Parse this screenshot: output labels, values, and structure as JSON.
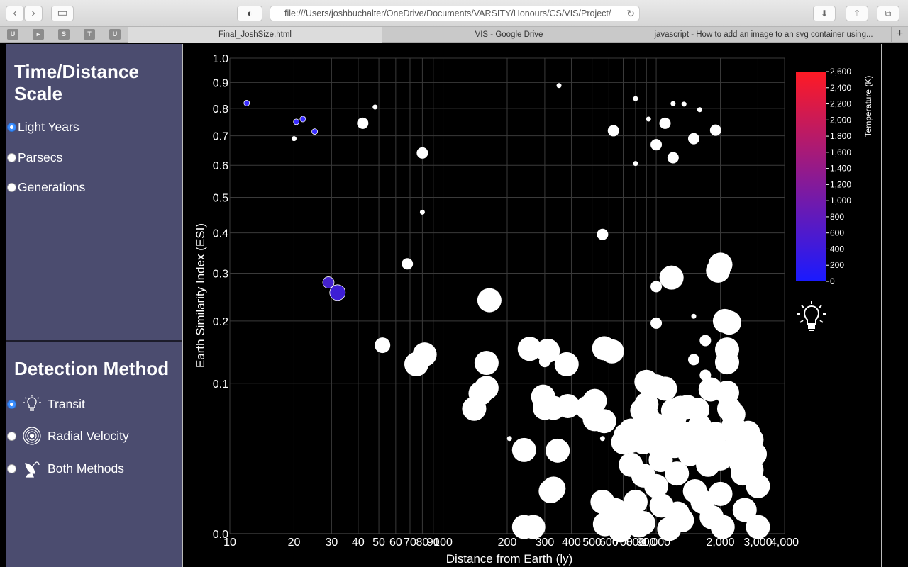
{
  "browser": {
    "url": "file:///Users/joshbuchalter/OneDrive/Documents/VARSITY/Honours/CS/VIS/Project/",
    "bookmarks": [
      "U",
      "",
      "S",
      "T",
      "U"
    ],
    "tabs": [
      {
        "label": "Final_JoshSize.html",
        "active": true
      },
      {
        "label": "VIS - Google Drive",
        "active": false
      },
      {
        "label": "javascript - How to add an image to an svg container using...",
        "active": false
      }
    ]
  },
  "sidebar": {
    "scale_title": "Time/Distance Scale",
    "scale_options": [
      {
        "label": "Light Years",
        "selected": true
      },
      {
        "label": "Parsecs",
        "selected": false
      },
      {
        "label": "Generations",
        "selected": false
      }
    ],
    "method_title": "Detection Method",
    "method_options": [
      {
        "label": "Transit",
        "icon": "lightbulb-icon",
        "selected": true
      },
      {
        "label": "Radial Velocity",
        "icon": "radial-waves-icon",
        "selected": false
      },
      {
        "label": "Both Methods",
        "icon": "satellite-dish-icon",
        "selected": false
      }
    ]
  },
  "chart_data": {
    "type": "scatter",
    "xlabel": "Distance from Earth (ly)",
    "ylabel": "Earth Similarity Index (ESI)",
    "x_scale": "log",
    "y_scale": "sqrt",
    "xlim": [
      10,
      4000
    ],
    "ylim": [
      0,
      1
    ],
    "x_ticks": [
      "10",
      "20",
      "30",
      "40",
      "50",
      "60",
      "70",
      "80",
      "90",
      "100",
      "200",
      "300",
      "400",
      "500",
      "600",
      "700",
      "800",
      "900",
      "1,000",
      "2,000",
      "3,000",
      "4,000"
    ],
    "x_tick_values": [
      10,
      20,
      30,
      40,
      50,
      60,
      70,
      80,
      90,
      100,
      200,
      300,
      400,
      500,
      600,
      700,
      800,
      900,
      1000,
      2000,
      3000,
      4000
    ],
    "y_ticks": [
      "0.0",
      "0.1",
      "0.2",
      "0.3",
      "0.4",
      "0.5",
      "0.6",
      "0.7",
      "0.8",
      "0.9",
      "1.0"
    ],
    "y_tick_values": [
      0,
      0.1,
      0.2,
      0.3,
      0.4,
      0.5,
      0.6,
      0.7,
      0.8,
      0.9,
      1.0
    ],
    "grid": true,
    "legend": {
      "title": "Temperature (K)",
      "placement": "right",
      "range": [
        0,
        2600
      ],
      "ticks": [
        "0",
        "200",
        "400",
        "600",
        "800",
        "1,000",
        "1,200",
        "1,400",
        "1,600",
        "1,800",
        "2,000",
        "2,200",
        "2,400",
        "2,600"
      ],
      "color_low": "#1a1aff",
      "color_high": "#ff1a24"
    },
    "legend_icon": "lightbulb-icon",
    "point_fill_default": "#ffffff",
    "points": [
      {
        "x": 12,
        "y": 0.82,
        "size": "small",
        "fill": "#3a2dff"
      },
      {
        "x": 20.5,
        "y": 0.75,
        "size": "small",
        "fill": "#3a2dff"
      },
      {
        "x": 22,
        "y": 0.76,
        "size": "small",
        "fill": "#3a2dff"
      },
      {
        "x": 25,
        "y": 0.715,
        "size": "small",
        "fill": "#3a2dff"
      },
      {
        "x": 20,
        "y": 0.69,
        "size": "tiny",
        "fill": "#ffffff"
      },
      {
        "x": 42,
        "y": 0.745,
        "size": "medium",
        "fill": "#ffffff"
      },
      {
        "x": 48,
        "y": 0.805,
        "size": "tiny",
        "fill": "#ffffff"
      },
      {
        "x": 80,
        "y": 0.641,
        "size": "medium",
        "fill": "#ffffff"
      },
      {
        "x": 80,
        "y": 0.457,
        "size": "tiny",
        "fill": "#ffffff"
      },
      {
        "x": 68,
        "y": 0.322,
        "size": "medium",
        "fill": "#ffffff"
      },
      {
        "x": 29,
        "y": 0.279,
        "size": "medium",
        "fill": "#4422cc"
      },
      {
        "x": 32,
        "y": 0.257,
        "size": "large",
        "fill": "#3d1ed4"
      },
      {
        "x": 52,
        "y": 0.157,
        "size": "large",
        "fill": "#ffffff"
      },
      {
        "x": 75,
        "y": 0.127,
        "size": "xlarge",
        "fill": "#ffffff"
      },
      {
        "x": 82,
        "y": 0.142,
        "size": "xlarge",
        "fill": "#ffffff"
      },
      {
        "x": 140,
        "y": 0.069,
        "size": "xlarge",
        "fill": "#ffffff"
      },
      {
        "x": 150,
        "y": 0.087,
        "size": "xlarge",
        "fill": "#ffffff"
      },
      {
        "x": 160,
        "y": 0.094,
        "size": "xlarge",
        "fill": "#ffffff"
      },
      {
        "x": 160,
        "y": 0.129,
        "size": "xlarge",
        "fill": "#ffffff"
      },
      {
        "x": 205,
        "y": 0.04,
        "size": "tiny",
        "fill": "#ffffff"
      },
      {
        "x": 165,
        "y": 0.241,
        "size": "xlarge",
        "fill": "#ffffff"
      },
      {
        "x": 255,
        "y": 0.151,
        "size": "xlarge",
        "fill": "#ffffff"
      },
      {
        "x": 240,
        "y": 0.031,
        "size": "xlarge",
        "fill": "#ffffff"
      },
      {
        "x": 240,
        "y": 0.0002,
        "size": "xlarge",
        "fill": "#ffffff"
      },
      {
        "x": 265,
        "y": 0.0002,
        "size": "xlarge",
        "fill": "#ffffff"
      },
      {
        "x": 295,
        "y": 0.083,
        "size": "xlarge",
        "fill": "#ffffff"
      },
      {
        "x": 300,
        "y": 0.07,
        "size": "xlarge",
        "fill": "#ffffff"
      },
      {
        "x": 300,
        "y": 0.131,
        "size": "medium",
        "fill": "#ffffff"
      },
      {
        "x": 310,
        "y": 0.148,
        "size": "xlarge",
        "fill": "#ffffff"
      },
      {
        "x": 320,
        "y": 0.008,
        "size": "xlarge",
        "fill": "#ffffff"
      },
      {
        "x": 330,
        "y": 0.009,
        "size": "xlarge",
        "fill": "#ffffff"
      },
      {
        "x": 330,
        "y": 0.07,
        "size": "xlarge",
        "fill": "#ffffff"
      },
      {
        "x": 345,
        "y": 0.0305,
        "size": "xlarge",
        "fill": "#ffffff"
      },
      {
        "x": 350,
        "y": 0.888,
        "size": "tiny",
        "fill": "#ffffff"
      },
      {
        "x": 380,
        "y": 0.127,
        "size": "xlarge",
        "fill": "#ffffff"
      },
      {
        "x": 385,
        "y": 0.072,
        "size": "xlarge",
        "fill": "#ffffff"
      },
      {
        "x": 388,
        "y": 0.082,
        "size": "tiny",
        "fill": "#ffffff"
      },
      {
        "x": 475,
        "y": 0.07,
        "size": "xlarge",
        "fill": "#ffffff"
      },
      {
        "x": 515,
        "y": 0.078,
        "size": "xlarge",
        "fill": "#ffffff"
      },
      {
        "x": 515,
        "y": 0.058,
        "size": "xlarge",
        "fill": "#ffffff"
      },
      {
        "x": 570,
        "y": 0.152,
        "size": "xlarge",
        "fill": "#ffffff"
      },
      {
        "x": 570,
        "y": 0.056,
        "size": "xlarge",
        "fill": "#ffffff"
      },
      {
        "x": 560,
        "y": 0.396,
        "size": "medium",
        "fill": "#ffffff"
      },
      {
        "x": 560,
        "y": 0.04,
        "size": "tiny",
        "fill": "#ffffff"
      },
      {
        "x": 620,
        "y": 0.147,
        "size": "xlarge",
        "fill": "#ffffff"
      },
      {
        "x": 630,
        "y": 0.718,
        "size": "medium",
        "fill": "#ffffff"
      },
      {
        "x": 560,
        "y": 0.0045,
        "size": "xlarge",
        "fill": "#ffffff"
      },
      {
        "x": 575,
        "y": 0.0004,
        "size": "xlarge",
        "fill": "#ffffff"
      },
      {
        "x": 640,
        "y": 0.0025,
        "size": "xlarge",
        "fill": "#ffffff"
      },
      {
        "x": 680,
        "y": 5e-05,
        "size": "xlarge",
        "fill": "#ffffff"
      },
      {
        "x": 700,
        "y": 0.037,
        "size": "xlarge",
        "fill": "#ffffff"
      },
      {
        "x": 720,
        "y": 0.043,
        "size": "xlarge",
        "fill": "#ffffff"
      },
      {
        "x": 740,
        "y": 0.0012,
        "size": "xlarge",
        "fill": "#ffffff"
      },
      {
        "x": 760,
        "y": 0.047,
        "size": "xlarge",
        "fill": "#ffffff"
      },
      {
        "x": 760,
        "y": 0.038,
        "size": "xlarge",
        "fill": "#ffffff"
      },
      {
        "x": 760,
        "y": 0.021,
        "size": "xlarge",
        "fill": "#ffffff"
      },
      {
        "x": 800,
        "y": 0.837,
        "size": "tiny",
        "fill": "#ffffff"
      },
      {
        "x": 800,
        "y": 0.606,
        "size": "tiny",
        "fill": "#ffffff"
      },
      {
        "x": 800,
        "y": 0.0045,
        "size": "xlarge",
        "fill": "#ffffff"
      },
      {
        "x": 830,
        "y": 0.0003,
        "size": "xlarge",
        "fill": "#ffffff"
      },
      {
        "x": 860,
        "y": 0.067,
        "size": "xlarge",
        "fill": "#ffffff"
      },
      {
        "x": 870,
        "y": 0.037,
        "size": "xlarge",
        "fill": "#ffffff"
      },
      {
        "x": 870,
        "y": 0.015,
        "size": "xlarge",
        "fill": "#ffffff"
      },
      {
        "x": 870,
        "y": 0.0005,
        "size": "xlarge",
        "fill": "#ffffff"
      },
      {
        "x": 900,
        "y": 0.102,
        "size": "xlarge",
        "fill": "#ffffff"
      },
      {
        "x": 900,
        "y": 0.074,
        "size": "xlarge",
        "fill": "#ffffff"
      },
      {
        "x": 905,
        "y": 0.053,
        "size": "xlarge",
        "fill": "#ffffff"
      },
      {
        "x": 910,
        "y": 0.06,
        "size": "xlarge",
        "fill": "#ffffff"
      },
      {
        "x": 920,
        "y": 0.76,
        "size": "tiny",
        "fill": "#ffffff"
      },
      {
        "x": 1000,
        "y": 0.096,
        "size": "xlarge",
        "fill": "#ffffff"
      },
      {
        "x": 1000,
        "y": 0.27,
        "size": "medium",
        "fill": "#ffffff"
      },
      {
        "x": 1000,
        "y": 0.196,
        "size": "medium",
        "fill": "#ffffff"
      },
      {
        "x": 1000,
        "y": 0.669,
        "size": "medium",
        "fill": "#ffffff"
      },
      {
        "x": 1000,
        "y": 0.052,
        "size": "xlarge",
        "fill": "#ffffff"
      },
      {
        "x": 1000,
        "y": 0.01,
        "size": "xlarge",
        "fill": "#ffffff"
      },
      {
        "x": 1040,
        "y": 0.044,
        "size": "xlarge",
        "fill": "#ffffff"
      },
      {
        "x": 1040,
        "y": 0.033,
        "size": "xlarge",
        "fill": "#ffffff"
      },
      {
        "x": 1050,
        "y": 0.024,
        "size": "xlarge",
        "fill": "#ffffff"
      },
      {
        "x": 1060,
        "y": 0.0035,
        "size": "xlarge",
        "fill": "#ffffff"
      },
      {
        "x": 1100,
        "y": 0.745,
        "size": "medium",
        "fill": "#ffffff"
      },
      {
        "x": 1100,
        "y": 0.093,
        "size": "xlarge",
        "fill": "#ffffff"
      },
      {
        "x": 1120,
        "y": 0.047,
        "size": "xlarge",
        "fill": "#ffffff"
      },
      {
        "x": 1150,
        "y": 0.0001,
        "size": "xlarge",
        "fill": "#ffffff"
      },
      {
        "x": 1180,
        "y": 0.29,
        "size": "xlarge",
        "fill": "#ffffff"
      },
      {
        "x": 1200,
        "y": 0.818,
        "size": "tiny",
        "fill": "#ffffff"
      },
      {
        "x": 1200,
        "y": 0.625,
        "size": "medium",
        "fill": "#ffffff"
      },
      {
        "x": 1200,
        "y": 0.067,
        "size": "xlarge",
        "fill": "#ffffff"
      },
      {
        "x": 1220,
        "y": 0.06,
        "size": "xlarge",
        "fill": "#ffffff"
      },
      {
        "x": 1220,
        "y": 0.034,
        "size": "xlarge",
        "fill": "#ffffff"
      },
      {
        "x": 1250,
        "y": 0.016,
        "size": "xlarge",
        "fill": "#ffffff"
      },
      {
        "x": 1260,
        "y": 0.0018,
        "size": "xlarge",
        "fill": "#ffffff"
      },
      {
        "x": 1300,
        "y": 0.07,
        "size": "xlarge",
        "fill": "#ffffff"
      },
      {
        "x": 1320,
        "y": 0.0008,
        "size": "xlarge",
        "fill": "#ffffff"
      },
      {
        "x": 1350,
        "y": 0.816,
        "size": "tiny",
        "fill": "#ffffff"
      },
      {
        "x": 1400,
        "y": 0.071,
        "size": "xlarge",
        "fill": "#ffffff"
      },
      {
        "x": 1400,
        "y": 0.044,
        "size": "xlarge",
        "fill": "#ffffff"
      },
      {
        "x": 1440,
        "y": 0.028,
        "size": "xlarge",
        "fill": "#ffffff"
      },
      {
        "x": 1500,
        "y": 0.134,
        "size": "medium",
        "fill": "#ffffff"
      },
      {
        "x": 1500,
        "y": 0.209,
        "size": "tiny",
        "fill": "#ffffff"
      },
      {
        "x": 1500,
        "y": 0.69,
        "size": "medium",
        "fill": "#ffffff"
      },
      {
        "x": 1520,
        "y": 0.008,
        "size": "xlarge",
        "fill": "#ffffff"
      },
      {
        "x": 1560,
        "y": 0.068,
        "size": "xlarge",
        "fill": "#ffffff"
      },
      {
        "x": 1600,
        "y": 0.795,
        "size": "tiny",
        "fill": "#ffffff"
      },
      {
        "x": 1600,
        "y": 0.051,
        "size": "xlarge",
        "fill": "#ffffff"
      },
      {
        "x": 1620,
        "y": 0.033,
        "size": "xlarge",
        "fill": "#ffffff"
      },
      {
        "x": 1650,
        "y": 0.0045,
        "size": "xlarge",
        "fill": "#ffffff"
      },
      {
        "x": 1700,
        "y": 0.165,
        "size": "medium",
        "fill": "#ffffff"
      },
      {
        "x": 1700,
        "y": 0.111,
        "size": "medium",
        "fill": "#ffffff"
      },
      {
        "x": 1700,
        "y": 0.088,
        "size": "medium",
        "fill": "#ffffff"
      },
      {
        "x": 1720,
        "y": 0.038,
        "size": "xlarge",
        "fill": "#ffffff"
      },
      {
        "x": 1750,
        "y": 0.021,
        "size": "xlarge",
        "fill": "#ffffff"
      },
      {
        "x": 1800,
        "y": 0.092,
        "size": "xlarge",
        "fill": "#ffffff"
      },
      {
        "x": 1820,
        "y": 0.0012,
        "size": "xlarge",
        "fill": "#ffffff"
      },
      {
        "x": 1900,
        "y": 0.72,
        "size": "medium",
        "fill": "#ffffff"
      },
      {
        "x": 1900,
        "y": 0.044,
        "size": "xlarge",
        "fill": "#ffffff"
      },
      {
        "x": 1920,
        "y": 0.032,
        "size": "xlarge",
        "fill": "#ffffff"
      },
      {
        "x": 1950,
        "y": 0.306,
        "size": "xlarge",
        "fill": "#ffffff"
      },
      {
        "x": 2000,
        "y": 0.32,
        "size": "xlarge",
        "fill": "#ffffff"
      },
      {
        "x": 2000,
        "y": 0.025,
        "size": "xlarge",
        "fill": "#ffffff"
      },
      {
        "x": 2000,
        "y": 0.007,
        "size": "xlarge",
        "fill": "#ffffff"
      },
      {
        "x": 2050,
        "y": 0.0002,
        "size": "xlarge",
        "fill": "#ffffff"
      },
      {
        "x": 2100,
        "y": 0.2,
        "size": "xlarge",
        "fill": "#ffffff"
      },
      {
        "x": 2150,
        "y": 0.15,
        "size": "xlarge",
        "fill": "#ffffff"
      },
      {
        "x": 2150,
        "y": 0.13,
        "size": "xlarge",
        "fill": "#ffffff"
      },
      {
        "x": 2150,
        "y": 0.088,
        "size": "xlarge",
        "fill": "#ffffff"
      },
      {
        "x": 2200,
        "y": 0.197,
        "size": "xlarge",
        "fill": "#ffffff"
      },
      {
        "x": 2200,
        "y": 0.069,
        "size": "xlarge",
        "fill": "#ffffff"
      },
      {
        "x": 2300,
        "y": 0.063,
        "size": "xlarge",
        "fill": "#ffffff"
      },
      {
        "x": 2300,
        "y": 0.051,
        "size": "xlarge",
        "fill": "#ffffff"
      },
      {
        "x": 2350,
        "y": 0.046,
        "size": "xlarge",
        "fill": "#ffffff"
      },
      {
        "x": 2400,
        "y": 0.035,
        "size": "xlarge",
        "fill": "#ffffff"
      },
      {
        "x": 2450,
        "y": 0.03,
        "size": "xlarge",
        "fill": "#ffffff"
      },
      {
        "x": 2500,
        "y": 0.022,
        "size": "xlarge",
        "fill": "#ffffff"
      },
      {
        "x": 2550,
        "y": 0.016,
        "size": "xlarge",
        "fill": "#ffffff"
      },
      {
        "x": 2600,
        "y": 0.0025,
        "size": "xlarge",
        "fill": "#ffffff"
      },
      {
        "x": 2700,
        "y": 0.045,
        "size": "xlarge",
        "fill": "#ffffff"
      },
      {
        "x": 2800,
        "y": 0.039,
        "size": "xlarge",
        "fill": "#ffffff"
      },
      {
        "x": 2800,
        "y": 0.018,
        "size": "xlarge",
        "fill": "#ffffff"
      },
      {
        "x": 2900,
        "y": 0.028,
        "size": "xlarge",
        "fill": "#ffffff"
      },
      {
        "x": 3000,
        "y": 0.01,
        "size": "xlarge",
        "fill": "#ffffff"
      },
      {
        "x": 3000,
        "y": 0.0002,
        "size": "xlarge",
        "fill": "#ffffff"
      }
    ]
  }
}
